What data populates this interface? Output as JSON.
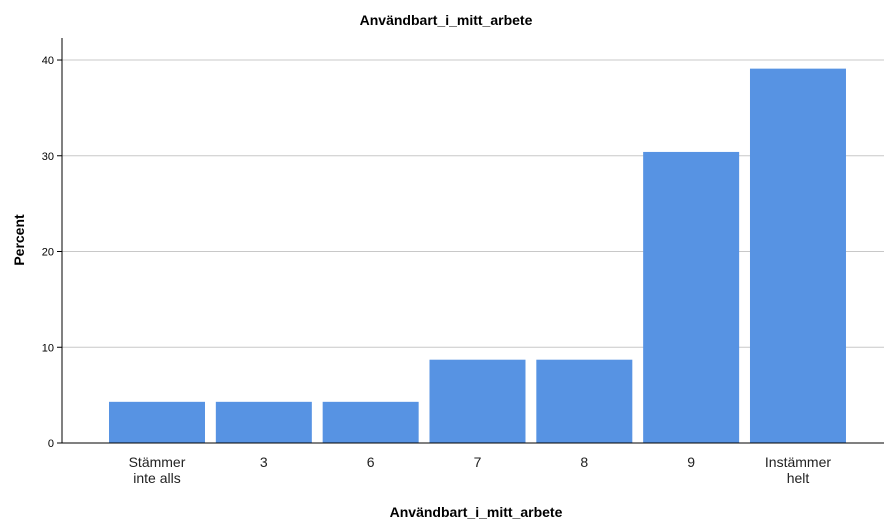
{
  "chart_data": {
    "type": "bar",
    "title": "Användbart_i_mitt_arbete",
    "xlabel": "Användbart_i_mitt_arbete",
    "ylabel": "Percent",
    "categories": [
      "Stämmer inte alls",
      "3",
      "6",
      "7",
      "8",
      "9",
      "Instämmer helt"
    ],
    "category_lines": [
      [
        "Stämmer",
        "inte alls"
      ],
      [
        "3"
      ],
      [
        "6"
      ],
      [
        "7"
      ],
      [
        "8"
      ],
      [
        "9"
      ],
      [
        "Instämmer",
        "helt"
      ]
    ],
    "values": [
      4.3,
      4.3,
      4.3,
      8.7,
      8.7,
      30.4,
      39.1
    ],
    "yticks": [
      0,
      10,
      20,
      30,
      40
    ],
    "ylim": [
      0,
      42.3
    ],
    "grid": true,
    "bar_color": "#5793e3",
    "grid_color": "#c8c8c8",
    "axis_color": "#000000"
  }
}
